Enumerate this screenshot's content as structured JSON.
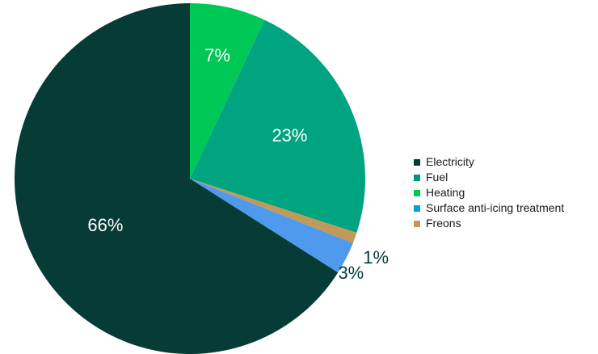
{
  "chart_data": {
    "type": "pie",
    "title": "",
    "categories": [
      "Electricity",
      "Fuel",
      "Heating",
      "Surface anti-icing treatment",
      "Freons"
    ],
    "slices": [
      {
        "name": "Heating",
        "value": 7,
        "label": "7%",
        "color": "#00c857"
      },
      {
        "name": "Fuel",
        "value": 23,
        "label": "23%",
        "color": "#00a481"
      },
      {
        "name": "Freons",
        "value": 1,
        "label": "1%",
        "color": "#c19a5a"
      },
      {
        "name": "Surface anti-icing treatment",
        "value": 3,
        "label": "3%",
        "color": "#4f9aec"
      },
      {
        "name": "Electricity",
        "value": 66,
        "label": "66%",
        "color": "#073b36"
      }
    ],
    "legend_position": "right"
  },
  "legend": {
    "items": [
      {
        "label": "Electricity",
        "color": "#073b36"
      },
      {
        "label": "Fuel",
        "color": "#00957a"
      },
      {
        "label": "Heating",
        "color": "#00c857"
      },
      {
        "label": "Surface anti-icing treatment",
        "color": "#00a2e0"
      },
      {
        "label": "Freons",
        "color": "#c19a5a"
      }
    ]
  }
}
